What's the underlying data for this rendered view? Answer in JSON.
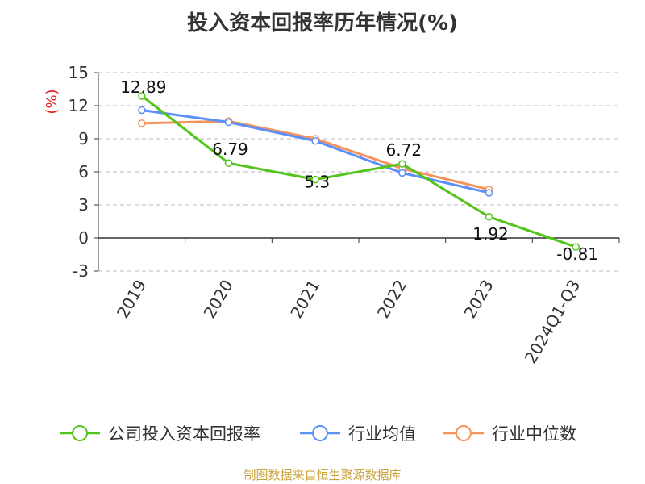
{
  "chart_data": {
    "type": "line",
    "title": "投入资本回报率历年情况(%)",
    "ylabel": "(%)",
    "categories": [
      "2019",
      "2020",
      "2021",
      "2022",
      "2023",
      "2024Q1-Q3"
    ],
    "ylim": [
      -3,
      15
    ],
    "yticks": [
      15,
      12,
      9,
      6,
      3,
      0,
      -3
    ],
    "grid": true,
    "legend_position": "bottom",
    "series": [
      {
        "name": "公司投入资本回报率",
        "color": "#52c41a",
        "values": [
          12.89,
          6.79,
          5.3,
          6.72,
          1.92,
          -0.81
        ],
        "labels": [
          "12.89",
          "6.79",
          "5.3",
          "6.72",
          "1.92",
          "-0.81"
        ]
      },
      {
        "name": "行业均值",
        "color": "#5b8ff9",
        "values": [
          11.6,
          10.5,
          8.8,
          5.9,
          4.1,
          null
        ]
      },
      {
        "name": "行业中位数",
        "color": "#f6935d",
        "values": [
          10.4,
          10.6,
          9.0,
          6.3,
          4.4,
          null
        ]
      }
    ]
  },
  "source_note": "制图数据来自恒生聚源数据库"
}
